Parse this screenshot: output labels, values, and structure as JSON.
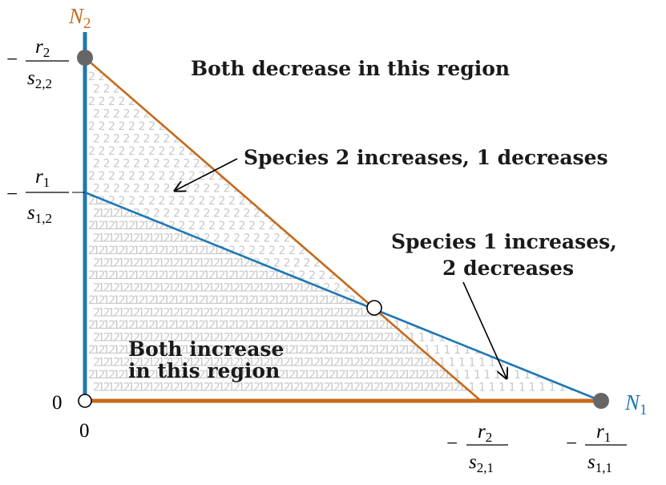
{
  "colors": {
    "n1_axis": "#1f77b4",
    "n2_axis": "#c56a1c",
    "isocline_species1": "#1f77b4",
    "isocline_species2": "#c56a1c",
    "point_fill": "#666666",
    "pattern_text": "#c8c8c8"
  },
  "axes": {
    "x_label": "N",
    "x_label_sub": "1",
    "y_label": "N",
    "y_label_sub": "2",
    "origin_x_label": "0",
    "origin_y_label": "0"
  },
  "ticks": {
    "x_r2_s21": {
      "sign": "−",
      "numerator": "r",
      "numerator_sub": "2",
      "denominator": "s",
      "denominator_sub": "2,1"
    },
    "x_r1_s11": {
      "sign": "−",
      "numerator": "r",
      "numerator_sub": "1",
      "denominator": "s",
      "denominator_sub": "1,1"
    },
    "y_r2_s22": {
      "sign": "−",
      "numerator": "r",
      "numerator_sub": "2",
      "denominator": "s",
      "denominator_sub": "2,2"
    },
    "y_r1_s12": {
      "sign": "−",
      "numerator": "r",
      "numerator_sub": "1",
      "denominator": "s",
      "denominator_sub": "1,2"
    }
  },
  "regions": {
    "both_decrease": "Both decrease in this region",
    "species2_increases": "Species 2 increases, 1 decreases",
    "species1_increases_line1": "Species 1 increases,",
    "species1_increases_line2": "2 decreases",
    "both_increase_line1": "Both increase",
    "both_increase_line2": "in this region"
  },
  "pattern_labels": {
    "species1": "1",
    "species2": "2"
  }
}
